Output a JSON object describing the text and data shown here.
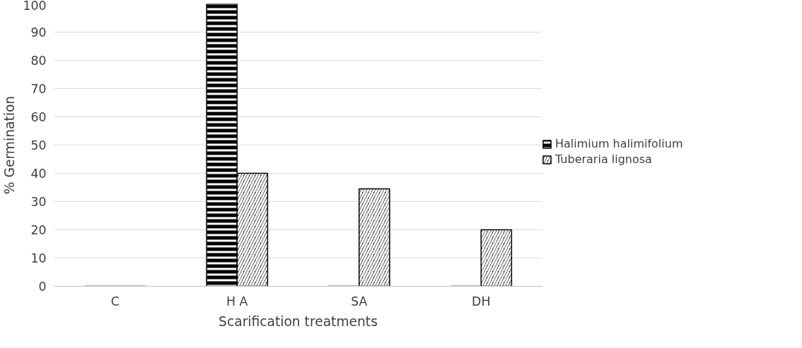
{
  "chart_data": {
    "type": "bar",
    "xlabel": "Scarification treatments",
    "ylabel": "% Germination",
    "categories": [
      "C",
      "H A",
      "SA",
      "DH"
    ],
    "series": [
      {
        "name": "Halimium halimifolium",
        "color": "#000000",
        "values": [
          0,
          100,
          0,
          0
        ]
      },
      {
        "name": "Tuberaria lignosa",
        "color": "#000000",
        "values": [
          0,
          40,
          34.5,
          20
        ]
      }
    ],
    "ylim": [
      0,
      100
    ],
    "yticks": [
      0,
      10,
      20,
      30,
      40,
      50,
      60,
      70,
      80,
      90,
      100
    ],
    "grid": "y",
    "legend": "right"
  }
}
